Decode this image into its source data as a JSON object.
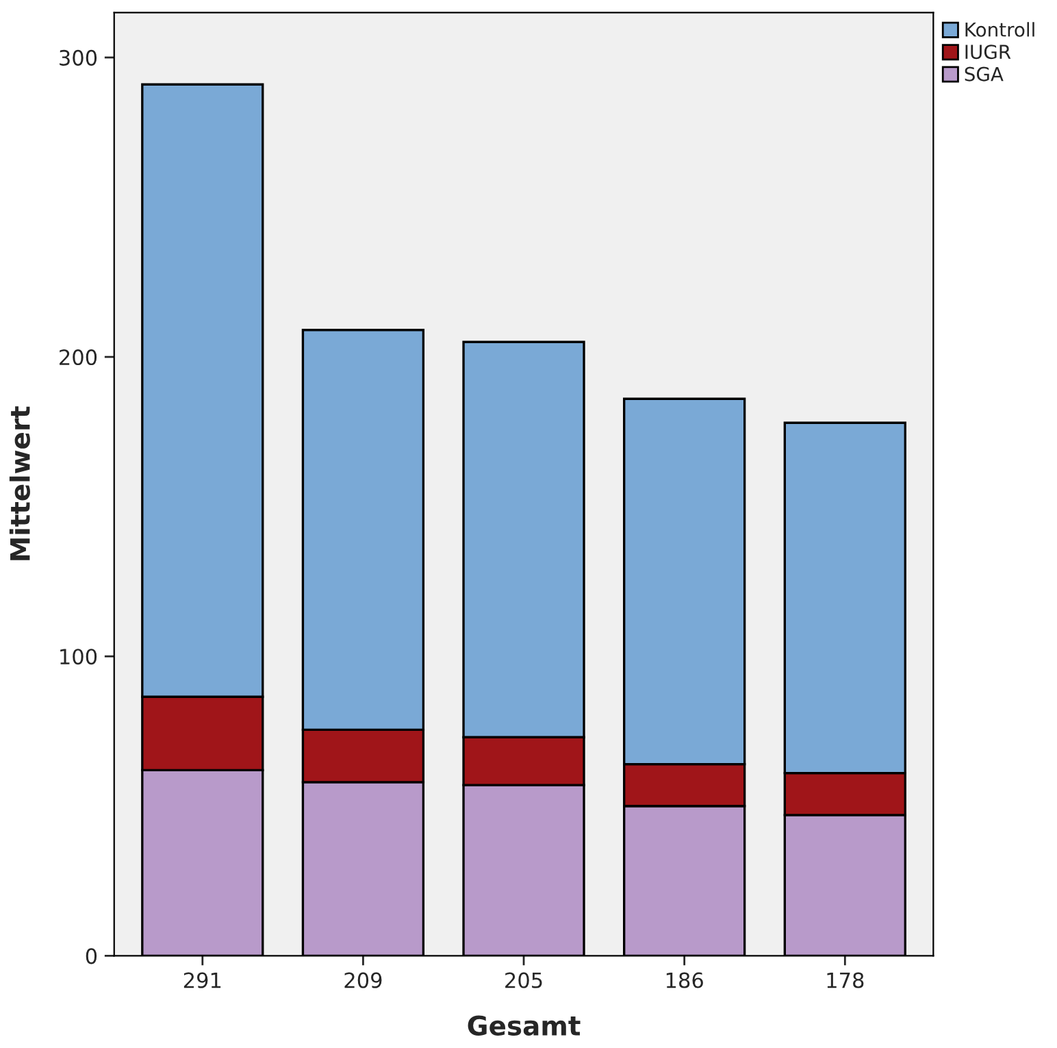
{
  "chart_data": {
    "type": "bar",
    "stacked": true,
    "xlabel": "Gesamt",
    "ylabel": "Mittelwert",
    "categories": [
      "291",
      "209",
      "205",
      "186",
      "178"
    ],
    "series": [
      {
        "name": "SGA",
        "color": "#b89aca",
        "values": [
          62,
          58,
          57,
          50,
          47
        ]
      },
      {
        "name": "IUGR",
        "color": "#a01519",
        "values": [
          24.5,
          17.5,
          16,
          14,
          14
        ]
      },
      {
        "name": "Kontroll",
        "color": "#7aa9d6",
        "values": [
          204.5,
          133.5,
          132,
          122,
          117
        ]
      }
    ],
    "ylim": [
      0,
      315
    ],
    "yticks": [
      0,
      100,
      200,
      300
    ],
    "grid": false,
    "legend": "top right"
  }
}
